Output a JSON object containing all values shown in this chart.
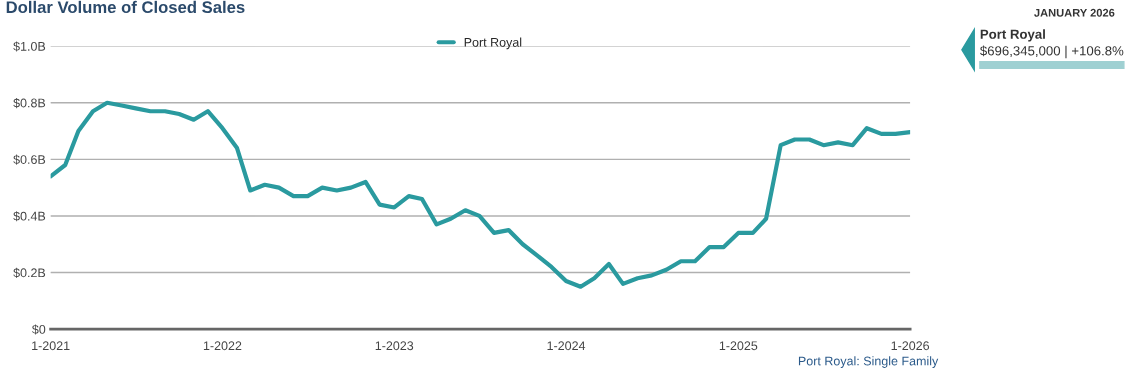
{
  "chart_data": {
    "type": "line",
    "title": "Dollar Volume of Closed Sales",
    "x": [
      "2021-01",
      "2021-02",
      "2021-03",
      "2021-04",
      "2021-05",
      "2021-06",
      "2021-07",
      "2021-08",
      "2021-09",
      "2021-10",
      "2021-11",
      "2021-12",
      "2022-01",
      "2022-02",
      "2022-03",
      "2022-04",
      "2022-05",
      "2022-06",
      "2022-07",
      "2022-08",
      "2022-09",
      "2022-10",
      "2022-11",
      "2022-12",
      "2023-01",
      "2023-02",
      "2023-03",
      "2023-04",
      "2023-05",
      "2023-06",
      "2023-07",
      "2023-08",
      "2023-09",
      "2023-10",
      "2023-11",
      "2023-12",
      "2024-01",
      "2024-02",
      "2024-03",
      "2024-04",
      "2024-05",
      "2024-06",
      "2024-07",
      "2024-08",
      "2024-09",
      "2024-10",
      "2024-11",
      "2024-12",
      "2025-01",
      "2025-02",
      "2025-03",
      "2025-04",
      "2025-05",
      "2025-06",
      "2025-07",
      "2025-08",
      "2025-09",
      "2025-10",
      "2025-11",
      "2025-12",
      "2026-01"
    ],
    "series": [
      {
        "name": "Port Royal",
        "color": "#2a9a9f",
        "values": [
          0.54,
          0.58,
          0.7,
          0.77,
          0.8,
          0.79,
          0.78,
          0.77,
          0.77,
          0.76,
          0.74,
          0.77,
          0.71,
          0.64,
          0.49,
          0.51,
          0.5,
          0.47,
          0.47,
          0.5,
          0.49,
          0.5,
          0.52,
          0.44,
          0.43,
          0.47,
          0.46,
          0.37,
          0.39,
          0.42,
          0.4,
          0.34,
          0.35,
          0.3,
          0.26,
          0.22,
          0.17,
          0.15,
          0.18,
          0.23,
          0.16,
          0.18,
          0.19,
          0.21,
          0.24,
          0.24,
          0.29,
          0.29,
          0.34,
          0.34,
          0.39,
          0.65,
          0.67,
          0.67,
          0.65,
          0.66,
          0.65,
          0.71,
          0.69,
          0.69,
          0.696
        ]
      }
    ],
    "xlim": [
      "2021-01",
      "2026-01"
    ],
    "xticks": [
      {
        "value": "2021-01",
        "label": "1-2021"
      },
      {
        "value": "2022-01",
        "label": "1-2022"
      },
      {
        "value": "2023-01",
        "label": "1-2023"
      },
      {
        "value": "2024-01",
        "label": "1-2024"
      },
      {
        "value": "2025-01",
        "label": "1-2025"
      },
      {
        "value": "2026-01",
        "label": "1-2026"
      }
    ],
    "ylim": [
      0,
      1.0
    ],
    "yticks": [
      {
        "value": 0,
        "label": "$0"
      },
      {
        "value": 0.2,
        "label": "$0.2B"
      },
      {
        "value": 0.4,
        "label": "$0.4B"
      },
      {
        "value": 0.6,
        "label": "$0.6B"
      },
      {
        "value": 0.8,
        "label": "$0.8B"
      },
      {
        "value": 1.0,
        "label": "$1.0B"
      }
    ],
    "grid": "y",
    "legend": "top",
    "marker": "none",
    "line_style": "solid",
    "annotations": [
      "Port Royal: Single Family",
      "JANUARY 2026",
      "Port Royal",
      "$696,345,000 | +106.8%"
    ]
  }
}
